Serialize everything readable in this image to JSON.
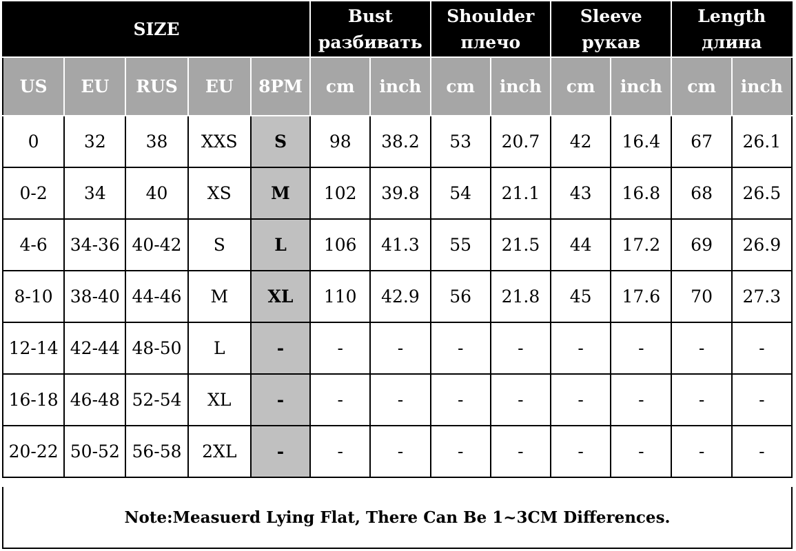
{
  "header": {
    "size_label": "SIZE",
    "groups": [
      {
        "en": "Bust",
        "ru": "разбивать"
      },
      {
        "en": "Shoulder",
        "ru": "плечо"
      },
      {
        "en": "Sleeve",
        "ru": "рукав"
      },
      {
        "en": "Length",
        "ru": "длина"
      }
    ],
    "columns": [
      "US",
      "EU",
      "RUS",
      "EU",
      "8PM",
      "cm",
      "inch",
      "cm",
      "inch",
      "cm",
      "inch",
      "cm",
      "inch"
    ]
  },
  "rows": [
    [
      "0",
      "32",
      "38",
      "XXS",
      "S",
      "98",
      "38.2",
      "53",
      "20.7",
      "42",
      "16.4",
      "67",
      "26.1"
    ],
    [
      "0-2",
      "34",
      "40",
      "XS",
      "M",
      "102",
      "39.8",
      "54",
      "21.1",
      "43",
      "16.8",
      "68",
      "26.5"
    ],
    [
      "4-6",
      "34-36",
      "40-42",
      "S",
      "L",
      "106",
      "41.3",
      "55",
      "21.5",
      "44",
      "17.2",
      "69",
      "26.9"
    ],
    [
      "8-10",
      "38-40",
      "44-46",
      "M",
      "XL",
      "110",
      "42.9",
      "56",
      "21.8",
      "45",
      "17.6",
      "70",
      "27.3"
    ],
    [
      "12-14",
      "42-44",
      "48-50",
      "L",
      "-",
      "-",
      "-",
      "-",
      "-",
      "-",
      "-",
      "-",
      "-"
    ],
    [
      "16-18",
      "46-48",
      "52-54",
      "XL",
      "-",
      "-",
      "-",
      "-",
      "-",
      "-",
      "-",
      "-",
      "-"
    ],
    [
      "20-22",
      "50-52",
      "56-58",
      "2XL",
      "-",
      "-",
      "-",
      "-",
      "-",
      "-",
      "-",
      "-",
      "-"
    ]
  ],
  "note": "Note:Measuerd Lying Flat, There Can Be 1~3CM Differences.",
  "colors": {
    "header_bg": "#000000",
    "subheader_bg": "#a6a6a6",
    "highlight_col_bg": "#c0c0c0"
  }
}
